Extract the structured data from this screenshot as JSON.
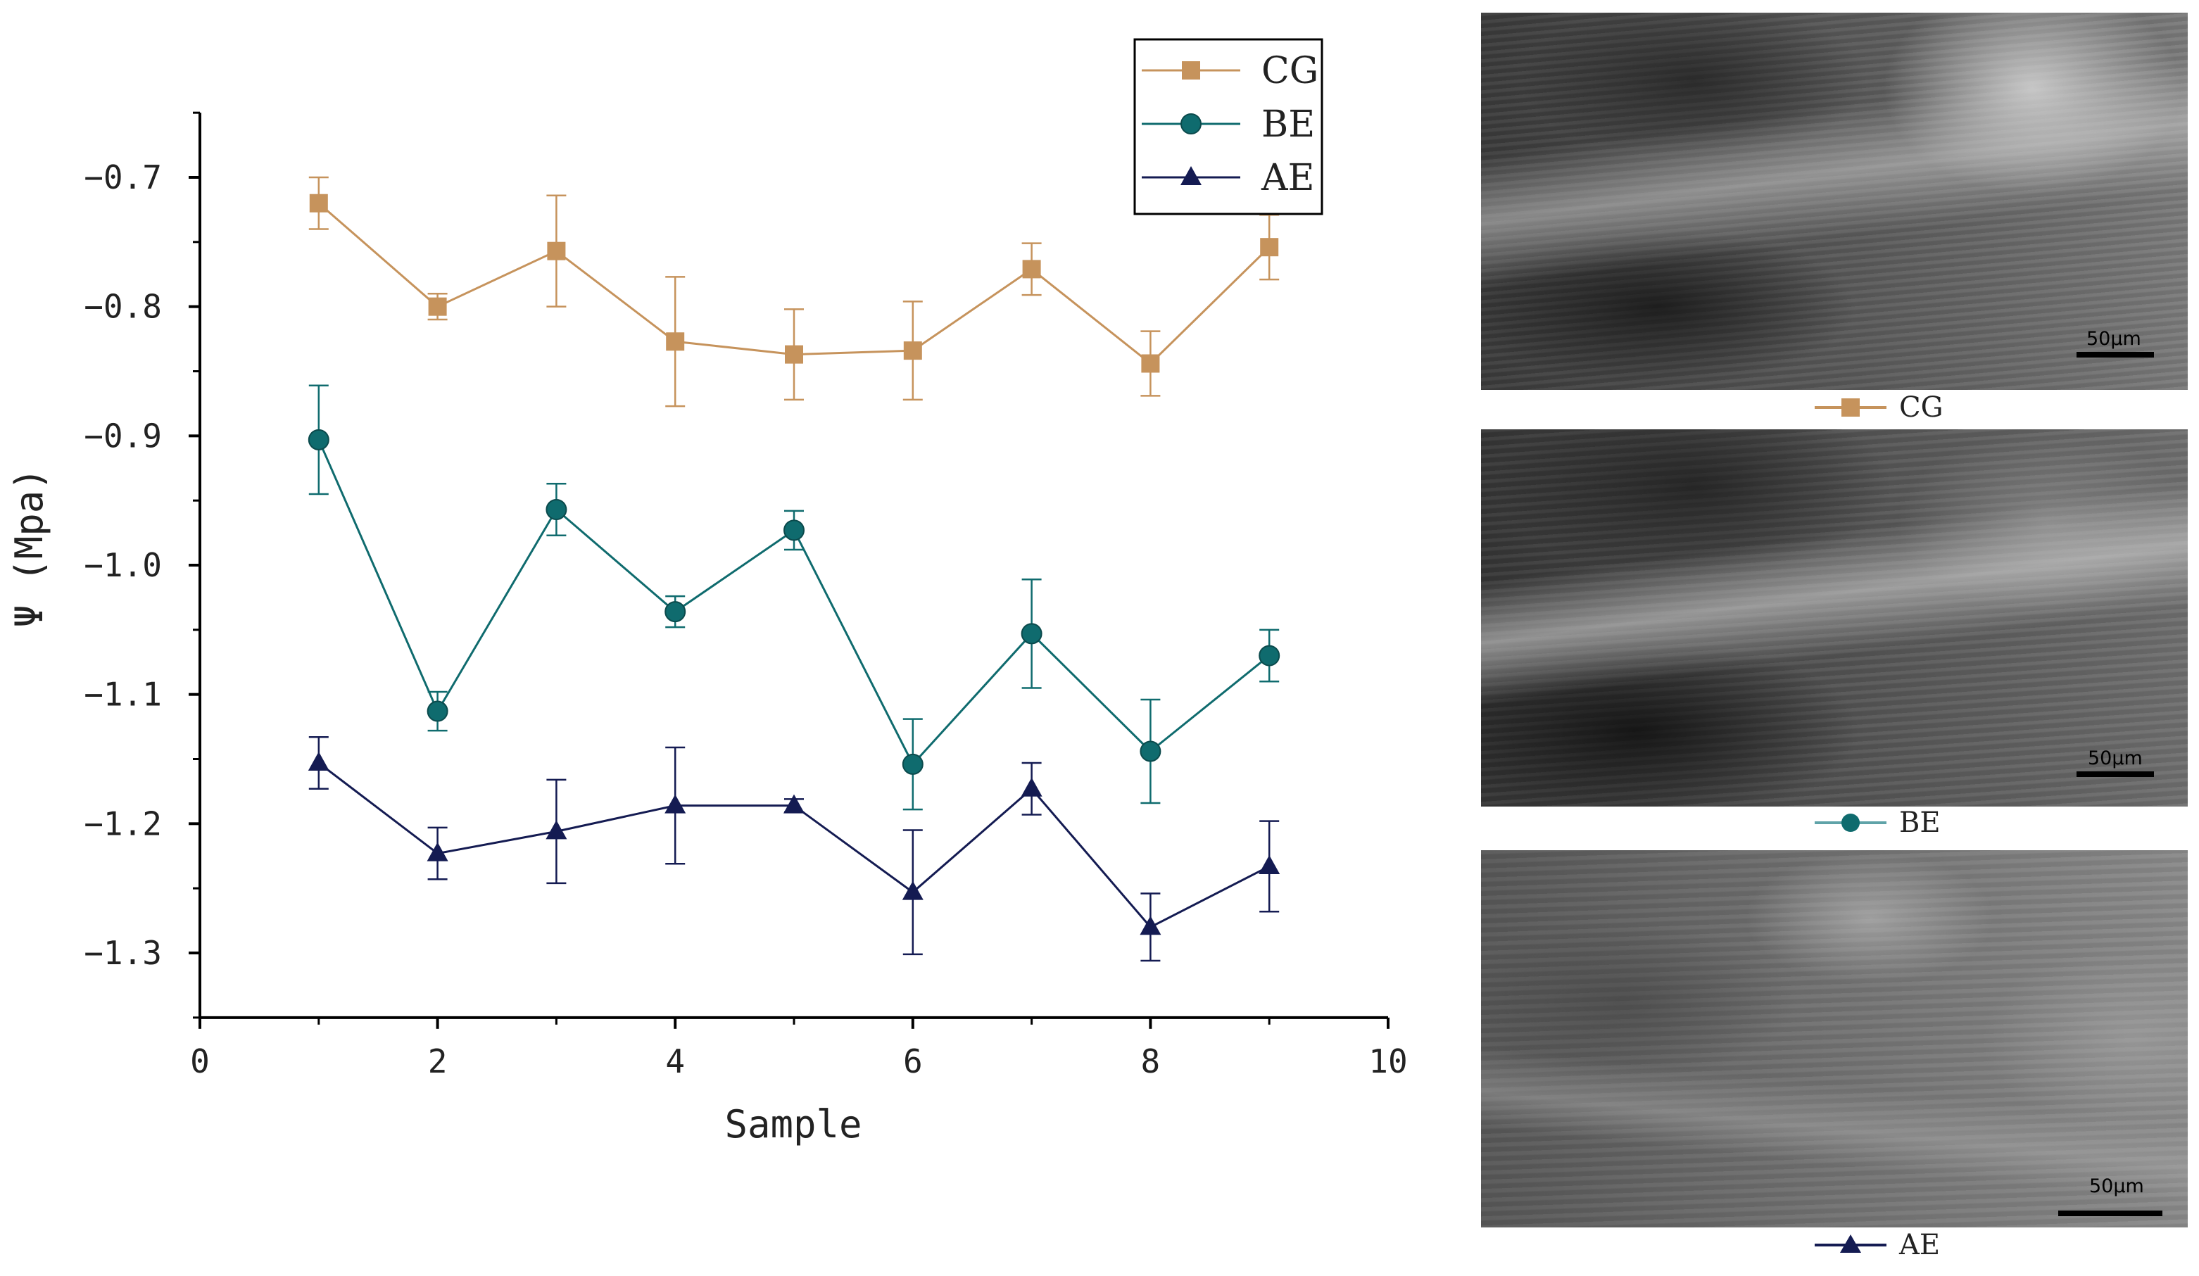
{
  "chart_data": {
    "type": "line",
    "title": "",
    "xlabel": "Sample",
    "ylabel": "Ψ (Mpa)",
    "xlim": [
      0,
      10
    ],
    "ylim": [
      -1.35,
      -0.65
    ],
    "xticks": [
      0,
      2,
      4,
      6,
      8,
      10
    ],
    "yticks": [
      -0.7,
      -0.8,
      -0.9,
      -1.0,
      -1.1,
      -1.2,
      -1.3
    ],
    "x_tick_labels": [
      "0",
      "2",
      "4",
      "6",
      "8",
      "10"
    ],
    "y_tick_labels": [
      "−0.7",
      "−0.8",
      "−0.9",
      "−1.0",
      "−1.1",
      "−1.2",
      "−1.3"
    ],
    "legend_position": "top-right",
    "grid": false,
    "x": [
      1,
      2,
      3,
      4,
      5,
      6,
      7,
      8,
      9
    ],
    "series": [
      {
        "name": "CG",
        "marker": "square",
        "color": "#C6935C",
        "values": [
          -0.72,
          -0.8,
          -0.757,
          -0.827,
          -0.837,
          -0.834,
          -0.771,
          -0.844,
          -0.754
        ],
        "error": [
          0.02,
          0.01,
          0.043,
          0.05,
          0.035,
          0.038,
          0.02,
          0.025,
          0.025
        ]
      },
      {
        "name": "BE",
        "marker": "circle",
        "color": "#0F6B6E",
        "values": [
          -0.903,
          -1.113,
          -0.957,
          -1.036,
          -0.973,
          -1.154,
          -1.053,
          -1.144,
          -1.07
        ],
        "error": [
          0.042,
          0.015,
          0.02,
          0.012,
          0.015,
          0.035,
          0.042,
          0.04,
          0.02
        ]
      },
      {
        "name": "AE",
        "marker": "triangle",
        "color": "#141B52",
        "values": [
          -1.153,
          -1.223,
          -1.206,
          -1.186,
          -1.186,
          -1.253,
          -1.173,
          -1.28,
          -1.233
        ],
        "error": [
          0.02,
          0.02,
          0.04,
          0.045,
          0.005,
          0.048,
          0.02,
          0.026,
          0.035
        ]
      }
    ]
  },
  "panels": [
    {
      "caption": "CG",
      "scale_label": "50μm",
      "color": "#C6935C",
      "marker": "square"
    },
    {
      "caption": "BE",
      "scale_label": "50μm",
      "color": "#0F6B6E",
      "marker": "circle"
    },
    {
      "caption": "AE",
      "scale_label": "50μm",
      "color": "#141B52",
      "marker": "triangle"
    }
  ]
}
